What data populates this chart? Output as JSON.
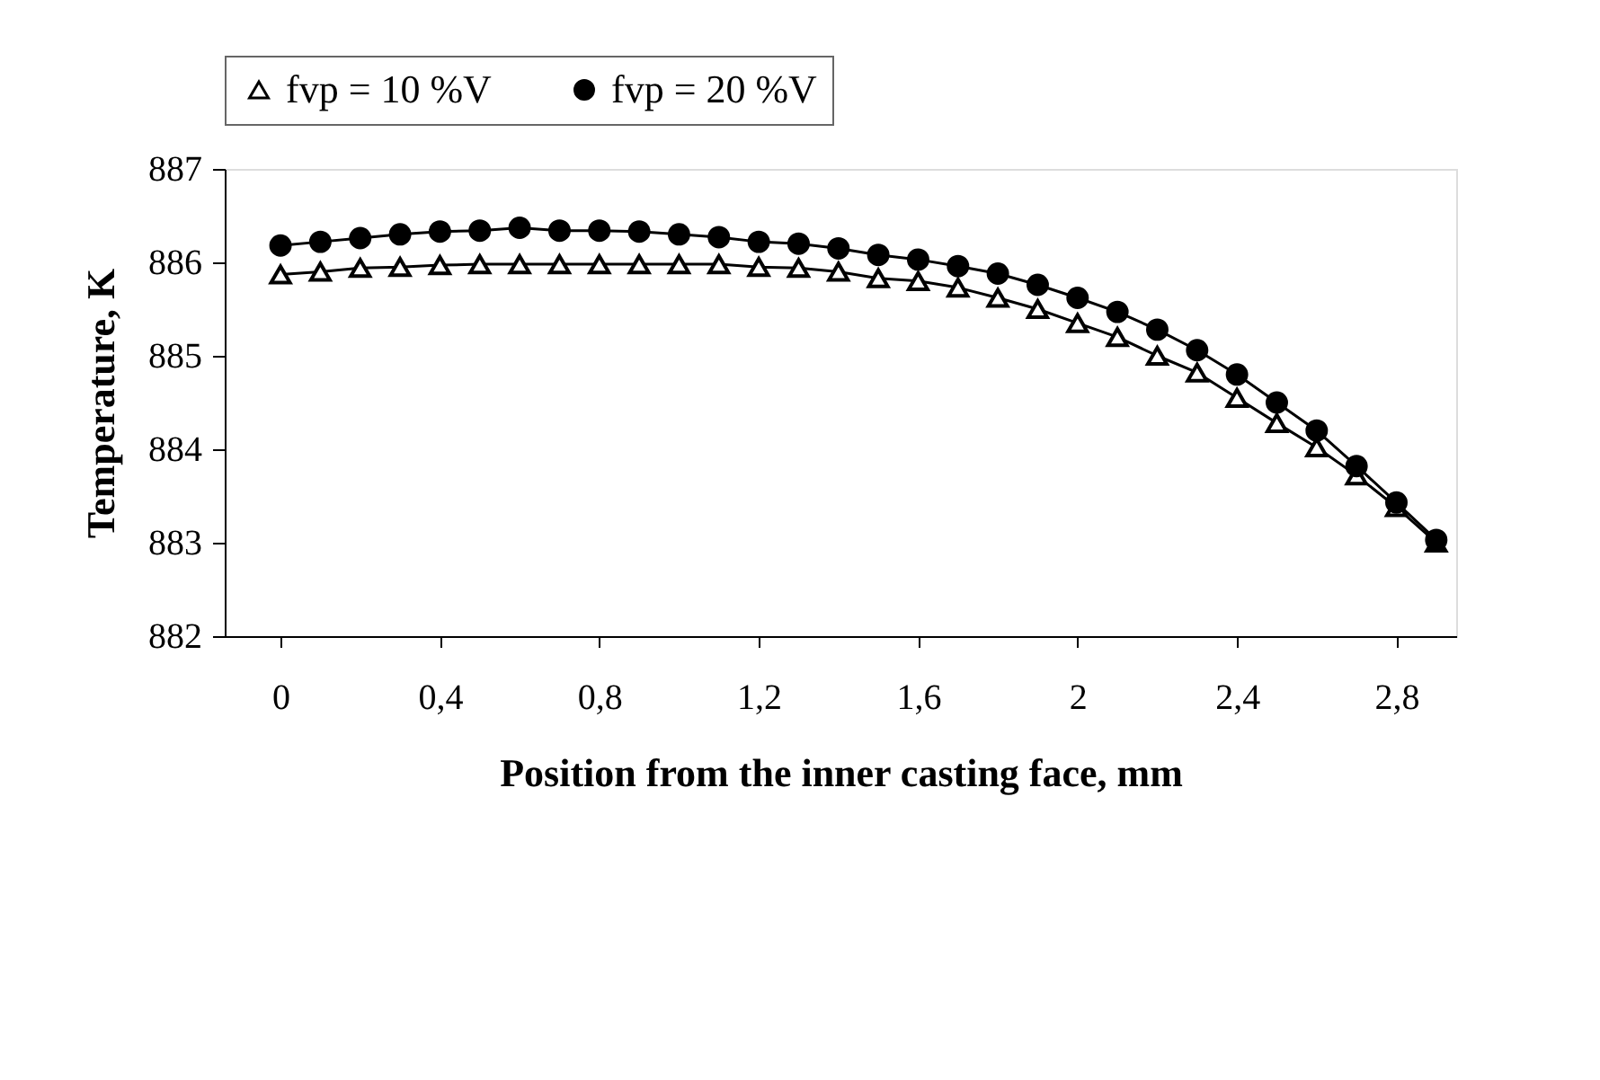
{
  "chart_data": {
    "type": "line",
    "xlabel": "Position from the inner casting face, mm",
    "ylabel": "Temperature, K",
    "x": [
      0,
      0.1,
      0.2,
      0.3,
      0.4,
      0.5,
      0.6,
      0.7,
      0.8,
      0.9,
      1.0,
      1.1,
      1.2,
      1.3,
      1.4,
      1.5,
      1.6,
      1.7,
      1.8,
      1.9,
      2.0,
      2.1,
      2.2,
      2.3,
      2.4,
      2.5,
      2.6,
      2.7,
      2.8,
      2.9
    ],
    "series": [
      {
        "name": "fvp = 10 %V",
        "color": "#000000",
        "marker": "triangle",
        "values": [
          885.87,
          885.9,
          885.94,
          885.95,
          885.97,
          885.98,
          885.98,
          885.98,
          885.98,
          885.98,
          885.98,
          885.98,
          885.95,
          885.94,
          885.9,
          885.83,
          885.8,
          885.73,
          885.62,
          885.5,
          885.35,
          885.2,
          885.0,
          884.82,
          884.55,
          884.28,
          884.02,
          883.72,
          883.38,
          883.0
        ]
      },
      {
        "name": "fvp = 20 %V",
        "color": "#000000",
        "marker": "circle",
        "values": [
          886.18,
          886.22,
          886.26,
          886.3,
          886.33,
          886.34,
          886.37,
          886.34,
          886.34,
          886.33,
          886.3,
          886.27,
          886.22,
          886.2,
          886.15,
          886.08,
          886.03,
          885.96,
          885.88,
          885.76,
          885.62,
          885.47,
          885.28,
          885.06,
          884.8,
          884.5,
          884.2,
          883.82,
          883.43,
          883.03
        ]
      }
    ],
    "xlim": [
      -0.14,
      2.95
    ],
    "xticks": [
      {
        "value": 0,
        "label": "0"
      },
      {
        "value": 0.4,
        "label": "0,4"
      },
      {
        "value": 0.8,
        "label": "0,8"
      },
      {
        "value": 1.2,
        "label": "1,2"
      },
      {
        "value": 1.6,
        "label": "1,6"
      },
      {
        "value": 2.0,
        "label": "2"
      },
      {
        "value": 2.4,
        "label": "2,4"
      },
      {
        "value": 2.8,
        "label": "2,8"
      }
    ],
    "ylim": [
      882,
      887
    ],
    "yticks": [
      882,
      883,
      884,
      885,
      886,
      887
    ],
    "grid": false,
    "legend": "top",
    "line_style": "solid"
  }
}
